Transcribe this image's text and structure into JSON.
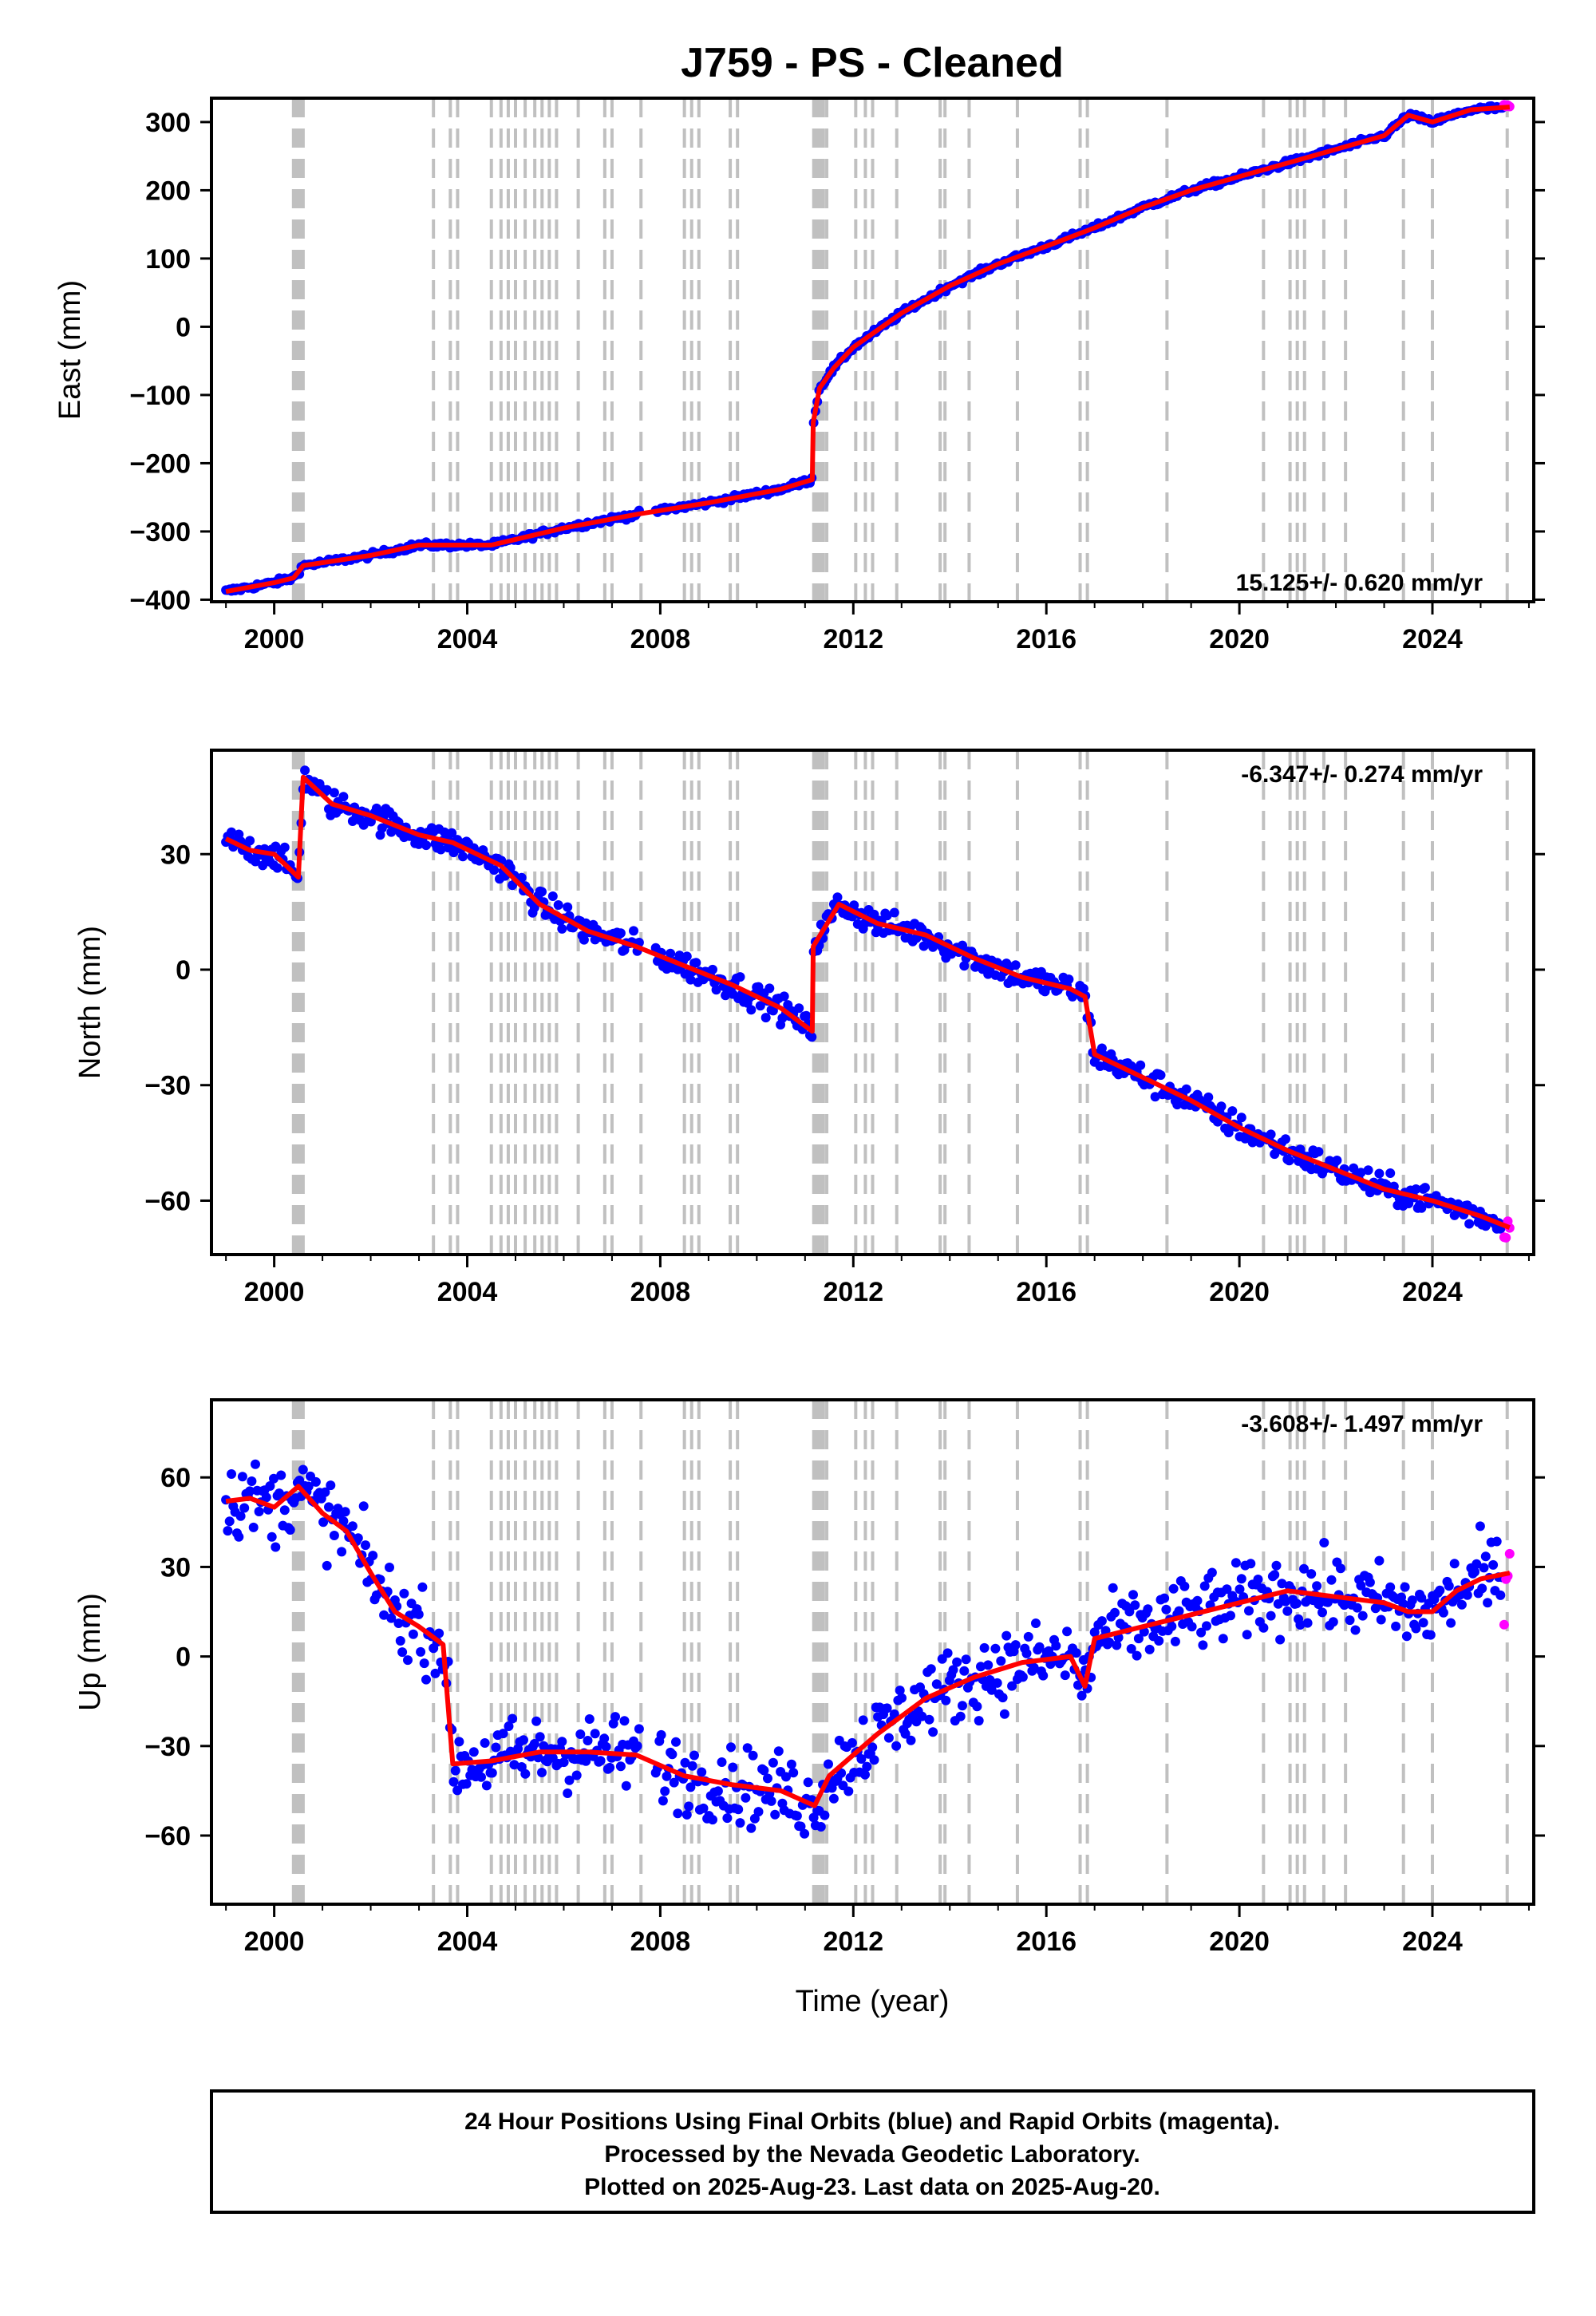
{
  "title": "J759  - PS - Cleaned",
  "xlabel": "Time (year)",
  "footer": {
    "line1": "24 Hour Positions Using Final Orbits (blue) and Rapid Orbits (magenta).",
    "line2": "Processed by the Nevada Geodetic Laboratory.",
    "line3": "Plotted on 2025-Aug-23. Last data on 2025-Aug-20."
  },
  "colors": {
    "final": "#0000ff",
    "rapid": "#ff00ff",
    "model": "#ff0000",
    "event_line": "#c0c0c0"
  },
  "chart_data": [
    {
      "type": "scatter",
      "name": "east",
      "ylabel": "East (mm)",
      "rate": "15.125+/- 0.620 mm/yr",
      "rate_position": "bottom-right",
      "xlim": [
        1998.7,
        2026.1
      ],
      "ylim": [
        -403,
        335
      ],
      "xticks": [
        2000,
        2004,
        2008,
        2012,
        2016,
        2020,
        2024
      ],
      "yticks": [
        -400,
        -300,
        -200,
        -100,
        0,
        100,
        200,
        300
      ],
      "scatter_amp": 3,
      "trend_x": [
        1999.0,
        2000.0,
        2000.4,
        2000.6,
        2002.0,
        2003.0,
        2004.5,
        2006.0,
        2007.5,
        2009.0,
        2010.5,
        2011.15,
        2011.17,
        2011.3,
        2011.6,
        2012.0,
        2013.0,
        2014.0,
        2015.0,
        2016.0,
        2017.0,
        2018.0,
        2019.0,
        2020.0,
        2021.0,
        2022.0,
        2023.0,
        2023.5,
        2024.0,
        2024.8,
        2025.6
      ],
      "trend_y": [
        -388,
        -375,
        -368,
        -350,
        -335,
        -320,
        -320,
        -295,
        -275,
        -258,
        -238,
        -224,
        -140,
        -90,
        -60,
        -30,
        20,
        60,
        92,
        118,
        145,
        175,
        200,
        220,
        240,
        260,
        280,
        310,
        300,
        318,
        322
      ]
    },
    {
      "type": "scatter",
      "name": "north",
      "ylabel": "North (mm)",
      "rate": "-6.347+/- 0.274 mm/yr",
      "rate_position": "top-right",
      "xlim": [
        1998.7,
        2026.1
      ],
      "ylim": [
        -74,
        57
      ],
      "xticks": [
        2000,
        2004,
        2008,
        2012,
        2016,
        2020,
        2024
      ],
      "yticks": [
        -60,
        -30,
        0,
        30
      ],
      "scatter_amp": 2.5,
      "trend_x": [
        1999.0,
        1999.5,
        2000.0,
        2000.5,
        2000.6,
        2001.2,
        2002.0,
        2003.0,
        2003.7,
        2004.7,
        2005.5,
        2006.5,
        2007.5,
        2008.5,
        2009.5,
        2010.5,
        2011.15,
        2011.17,
        2011.7,
        2012.5,
        2013.5,
        2014.5,
        2015.5,
        2016.5,
        2016.8,
        2017.0,
        2018.0,
        2019.0,
        2020.0,
        2021.0,
        2022.0,
        2023.0,
        2024.0,
        2025.0,
        2025.6
      ],
      "trend_y": [
        34,
        31,
        30,
        24,
        50,
        43,
        40,
        35,
        33,
        27,
        17,
        10,
        6,
        1,
        -4,
        -10,
        -16,
        6,
        17,
        12,
        9,
        3,
        -2,
        -5,
        -7,
        -22,
        -28,
        -34,
        -41,
        -47,
        -52,
        -57,
        -60,
        -64,
        -67
      ]
    },
    {
      "type": "scatter",
      "name": "up",
      "ylabel": "Up (mm)",
      "rate": "-3.608+/- 1.497 mm/yr",
      "rate_position": "top-right",
      "xlim": [
        1998.7,
        2026.1
      ],
      "ylim": [
        -83,
        86
      ],
      "xticks": [
        2000,
        2004,
        2008,
        2012,
        2016,
        2020,
        2024
      ],
      "yticks": [
        -60,
        -30,
        0,
        30,
        60
      ],
      "scatter_amp": 9,
      "trend_x": [
        1999.0,
        1999.5,
        2000.0,
        2000.5,
        2001.0,
        2001.5,
        2002.0,
        2002.5,
        2003.0,
        2003.5,
        2003.7,
        2004.5,
        2005.5,
        2006.5,
        2007.5,
        2008.5,
        2009.5,
        2010.5,
        2011.2,
        2011.5,
        2012.5,
        2013.5,
        2014.5,
        2015.5,
        2016.5,
        2016.8,
        2017.0,
        2018.0,
        2019.0,
        2020.0,
        2021.0,
        2022.0,
        2023.0,
        2023.5,
        2024.0,
        2024.5,
        2025.0,
        2025.6
      ],
      "trend_y": [
        52,
        53,
        50,
        57,
        48,
        42,
        28,
        15,
        10,
        4,
        -36,
        -35,
        -32,
        -32,
        -33,
        -40,
        -43,
        -45,
        -50,
        -40,
        -26,
        -14,
        -7,
        -2,
        0,
        -10,
        6,
        10,
        14,
        18,
        22,
        20,
        18,
        15,
        15,
        22,
        26,
        28
      ]
    }
  ],
  "event_lines": [
    2000.4,
    2000.45,
    2000.5,
    2000.55,
    2000.6,
    2003.3,
    2003.65,
    2003.8,
    2004.5,
    2004.7,
    2004.85,
    2005.0,
    2005.2,
    2005.4,
    2005.55,
    2005.7,
    2005.85,
    2006.3,
    2006.85,
    2007.0,
    2007.6,
    2008.5,
    2008.65,
    2008.8,
    2009.45,
    2009.6,
    2011.18,
    2011.22,
    2011.27,
    2011.32,
    2011.38,
    2011.45,
    2012.05,
    2012.25,
    2012.4,
    2012.9,
    2013.8,
    2013.9,
    2014.4,
    2015.4,
    2016.7,
    2016.85,
    2018.5,
    2020.5,
    2021.05,
    2021.2,
    2021.35,
    2021.75,
    2022.2,
    2023.4,
    2024.0,
    2025.55
  ]
}
